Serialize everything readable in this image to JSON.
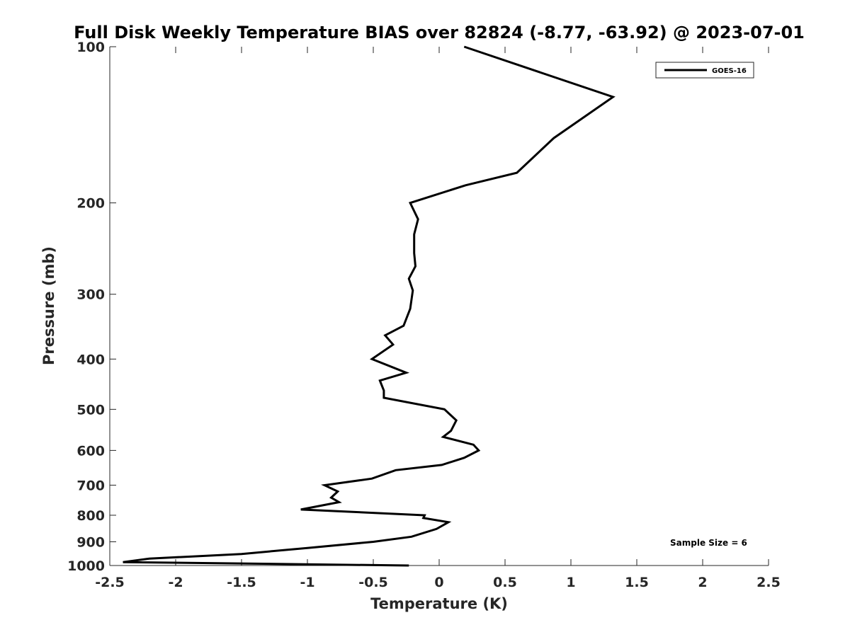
{
  "chart_data": {
    "type": "line",
    "title": "Full Disk Weekly Temperature BIAS over 82824 (-8.77, -63.92) @ 2023-07-01",
    "xlabel": "Temperature (K)",
    "ylabel": "Pressure (mb)",
    "xlim": [
      -2.5,
      2.5
    ],
    "ylim": [
      100,
      1000
    ],
    "yscale": "log",
    "yreversed": true,
    "xticks": [
      -2.5,
      -2,
      -1.5,
      -1,
      -0.5,
      0,
      0.5,
      1,
      1.5,
      2,
      2.5
    ],
    "xtick_labels": [
      "-2.5",
      "-2",
      "-1.5",
      "-1",
      "-0.5",
      "0",
      "0.5",
      "1",
      "1.5",
      "2",
      "2.5"
    ],
    "yticks": [
      100,
      200,
      300,
      400,
      500,
      600,
      700,
      800,
      900,
      1000
    ],
    "ytick_labels": [
      "100",
      "200",
      "300",
      "400",
      "500",
      "600",
      "700",
      "800",
      "900",
      "1000"
    ],
    "grid": false,
    "legend_position": "top-right",
    "annotation": "Sample Size = 6",
    "series": [
      {
        "name": "GOES-16",
        "color": "#000000",
        "points": [
          [
            0.19,
            100
          ],
          [
            1.32,
            125
          ],
          [
            0.87,
            150
          ],
          [
            0.59,
            175
          ],
          [
            0.2,
            185
          ],
          [
            -0.22,
            200
          ],
          [
            -0.16,
            215
          ],
          [
            -0.19,
            230
          ],
          [
            -0.19,
            250
          ],
          [
            -0.18,
            265
          ],
          [
            -0.23,
            280
          ],
          [
            -0.2,
            295
          ],
          [
            -0.22,
            320
          ],
          [
            -0.27,
            345
          ],
          [
            -0.41,
            360
          ],
          [
            -0.35,
            375
          ],
          [
            -0.51,
            400
          ],
          [
            -0.25,
            425
          ],
          [
            -0.45,
            440
          ],
          [
            -0.42,
            460
          ],
          [
            -0.42,
            475
          ],
          [
            0.04,
            500
          ],
          [
            0.13,
            525
          ],
          [
            0.09,
            550
          ],
          [
            0.03,
            565
          ],
          [
            0.26,
            585
          ],
          [
            0.3,
            600
          ],
          [
            0.19,
            620
          ],
          [
            0.02,
            640
          ],
          [
            -0.33,
            655
          ],
          [
            -0.51,
            680
          ],
          [
            -0.87,
            700
          ],
          [
            -0.77,
            720
          ],
          [
            -0.82,
            740
          ],
          [
            -0.76,
            755
          ],
          [
            -1.05,
            780
          ],
          [
            -0.11,
            800
          ],
          [
            -0.12,
            810
          ],
          [
            0.07,
            825
          ],
          [
            -0.02,
            850
          ],
          [
            -0.21,
            880
          ],
          [
            -0.5,
            900
          ],
          [
            -1.0,
            925
          ],
          [
            -1.5,
            950
          ],
          [
            -2.2,
            970
          ],
          [
            -2.4,
            985
          ],
          [
            -0.23,
            1000
          ]
        ]
      }
    ]
  }
}
